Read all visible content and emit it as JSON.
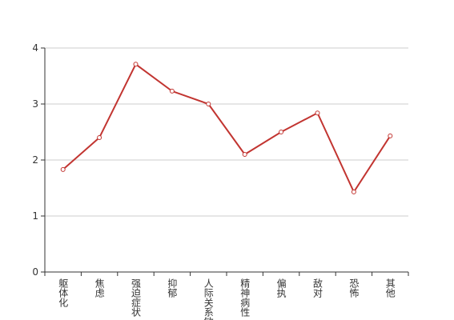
{
  "chart_data": {
    "type": "line",
    "categories": [
      "躯体化",
      "焦虑",
      "强迫症状",
      "抑郁",
      "人际关系敏感",
      "精神病性",
      "偏执",
      "敌对",
      "恐怖",
      "其他"
    ],
    "series": [
      {
        "color": "#c23531",
        "values": [
          1.83,
          2.4,
          3.71,
          3.23,
          3.0,
          2.1,
          2.5,
          2.84,
          1.43,
          2.43
        ]
      }
    ],
    "ylim": [
      0,
      4
    ],
    "yticks": [
      0,
      1,
      2,
      3,
      4
    ],
    "grid": true
  }
}
